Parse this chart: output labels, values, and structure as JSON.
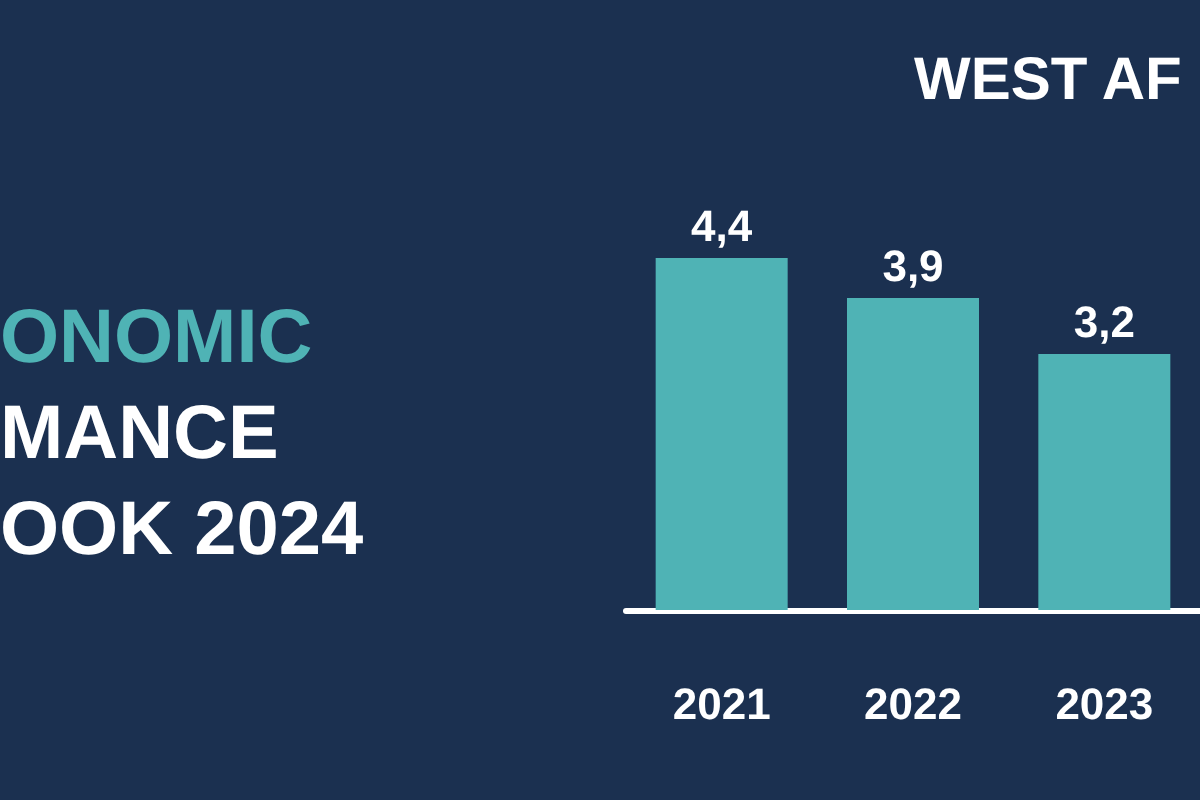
{
  "chart_data": {
    "type": "bar",
    "title": "WEST AF",
    "annotations": [
      "ONOMIC",
      "MANCE",
      "OOK 2024"
    ],
    "categories": [
      "2021",
      "2022",
      "2023"
    ],
    "values": [
      4.4,
      3.9,
      3.2
    ],
    "value_labels": [
      "4,4",
      "3,9",
      "3,2"
    ],
    "color": "#4fb3b5"
  }
}
